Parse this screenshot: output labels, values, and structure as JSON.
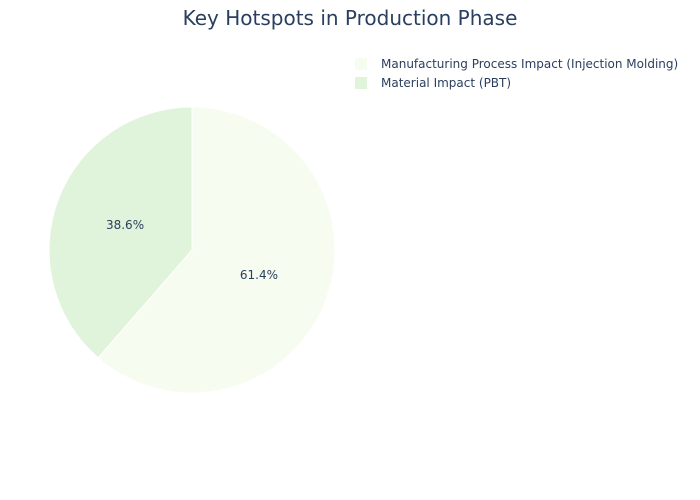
{
  "chart_data": {
    "type": "pie",
    "title": "Key Hotspots in Production Phase",
    "labels": [
      "Manufacturing Process Impact (Injection Molding)",
      "Material Impact (PBT)"
    ],
    "values": [
      61.4,
      38.6
    ],
    "value_labels": [
      "61.4%",
      "38.6%"
    ],
    "colors": [
      "#f7fcf0",
      "#e0f3db"
    ],
    "slice_border_color": "#ffffff",
    "direction": "clockwise",
    "start_angle": "12 o'clock",
    "legend_position": "top-right",
    "text_color": "#2a3f5f"
  }
}
